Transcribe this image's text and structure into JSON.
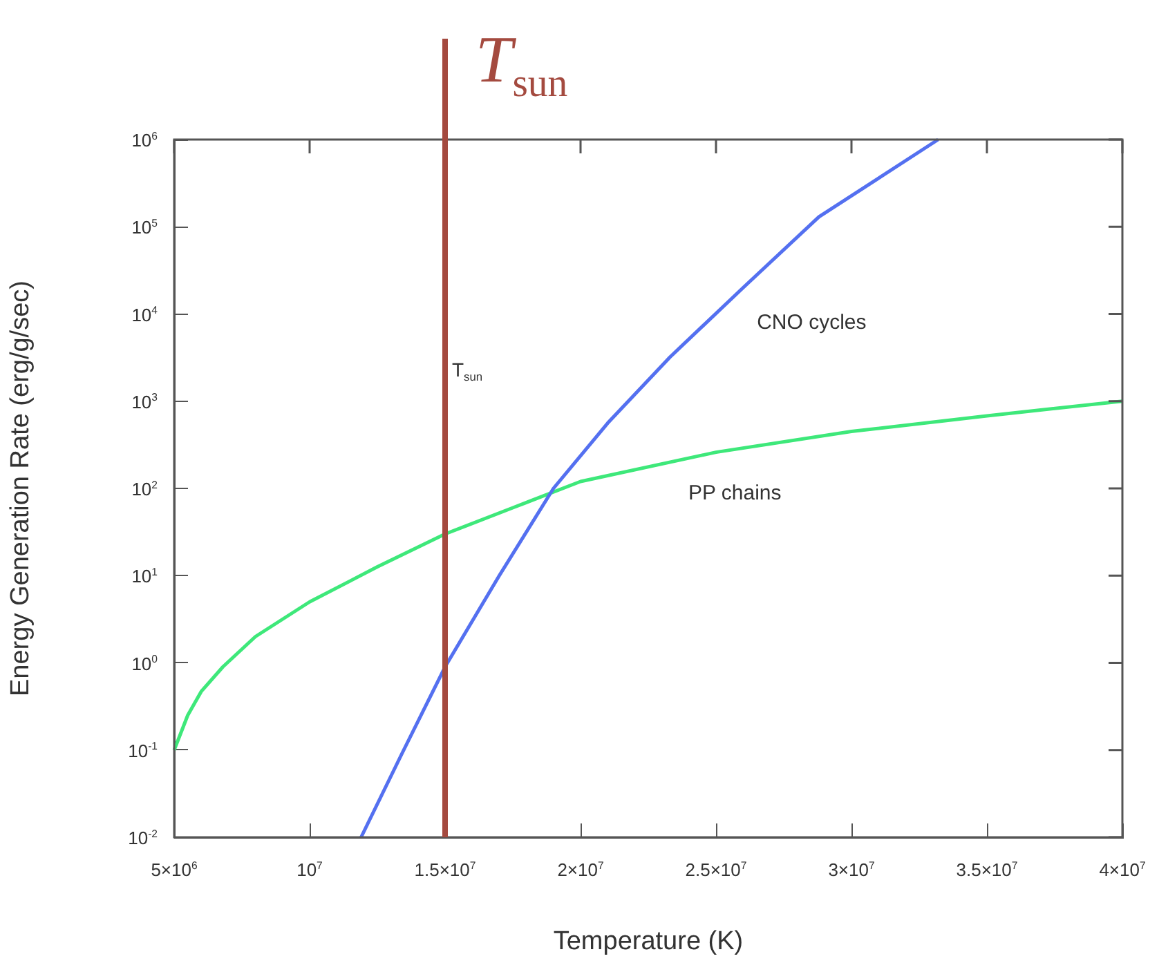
{
  "chart_data": {
    "type": "line",
    "xlabel": "Temperature (K)",
    "ylabel": "Energy Generation Rate (erg/g/sec)",
    "log": "y",
    "grid": false,
    "legend": false,
    "marker": "none",
    "line_style": "solid",
    "xlim": [
      5000000,
      40000000
    ],
    "xticks": [
      {
        "value": 5000000,
        "label": "5×10$^{6}$"
      },
      {
        "value": 10000000,
        "label": "10$^{7}$"
      },
      {
        "value": 15000000,
        "label": "1.5×10$^{7}$"
      },
      {
        "value": 20000000,
        "label": "2×10$^{7}$"
      },
      {
        "value": 25000000,
        "label": "2.5×10$^{7}$"
      },
      {
        "value": 30000000,
        "label": "3×10$^{7}$"
      },
      {
        "value": 35000000,
        "label": "3.5×10$^{7}$"
      },
      {
        "value": 40000000,
        "label": "4×10$^{7}$"
      }
    ],
    "ylim": [
      0.01,
      1000000
    ],
    "yticks": [
      {
        "value": 0.01,
        "label": "10$^{-2}$"
      },
      {
        "value": 0.1,
        "label": "10$^{-1}$"
      },
      {
        "value": 1,
        "label": "10$^{0}$"
      },
      {
        "value": 10,
        "label": "10$^{1}$"
      },
      {
        "value": 100,
        "label": "10$^{2}$"
      },
      {
        "value": 1000,
        "label": "10$^{3}$"
      },
      {
        "value": 10000,
        "label": "10$^{4}$"
      },
      {
        "value": 100000,
        "label": "10$^{5}$"
      },
      {
        "value": 1000000,
        "label": "10$^{6}$"
      }
    ],
    "series": [
      {
        "name": "CNO cycles",
        "color": "#5470f0",
        "x": [
          11900000,
          13400000,
          15000000,
          17000000,
          19000000,
          21000000,
          23300000,
          26000000,
          28800000,
          33200000
        ],
        "values": [
          0.01,
          0.09,
          0.9,
          10,
          100,
          560,
          3200,
          20000,
          130000,
          1000000
        ]
      },
      {
        "name": "PP chains",
        "color": "#3ee87a",
        "x": [
          5000000,
          5500000,
          6000000,
          6800000,
          8000000,
          10000000,
          12500000,
          15000000,
          17500000,
          20000000,
          25000000,
          30000000,
          35000000,
          40000000
        ],
        "values": [
          0.1,
          0.25,
          0.47,
          0.9,
          2,
          5,
          12.6,
          30,
          60,
          120,
          260,
          450,
          680,
          1000
        ]
      }
    ],
    "ref_lines": [
      {
        "axis": "x",
        "value": 15000000,
        "label": "T$_{sun}$",
        "color": "#a44a3f"
      }
    ],
    "annotations": [
      {
        "text": "T$_{sun}$",
        "x": 15000000,
        "y": 1000
      }
    ]
  }
}
